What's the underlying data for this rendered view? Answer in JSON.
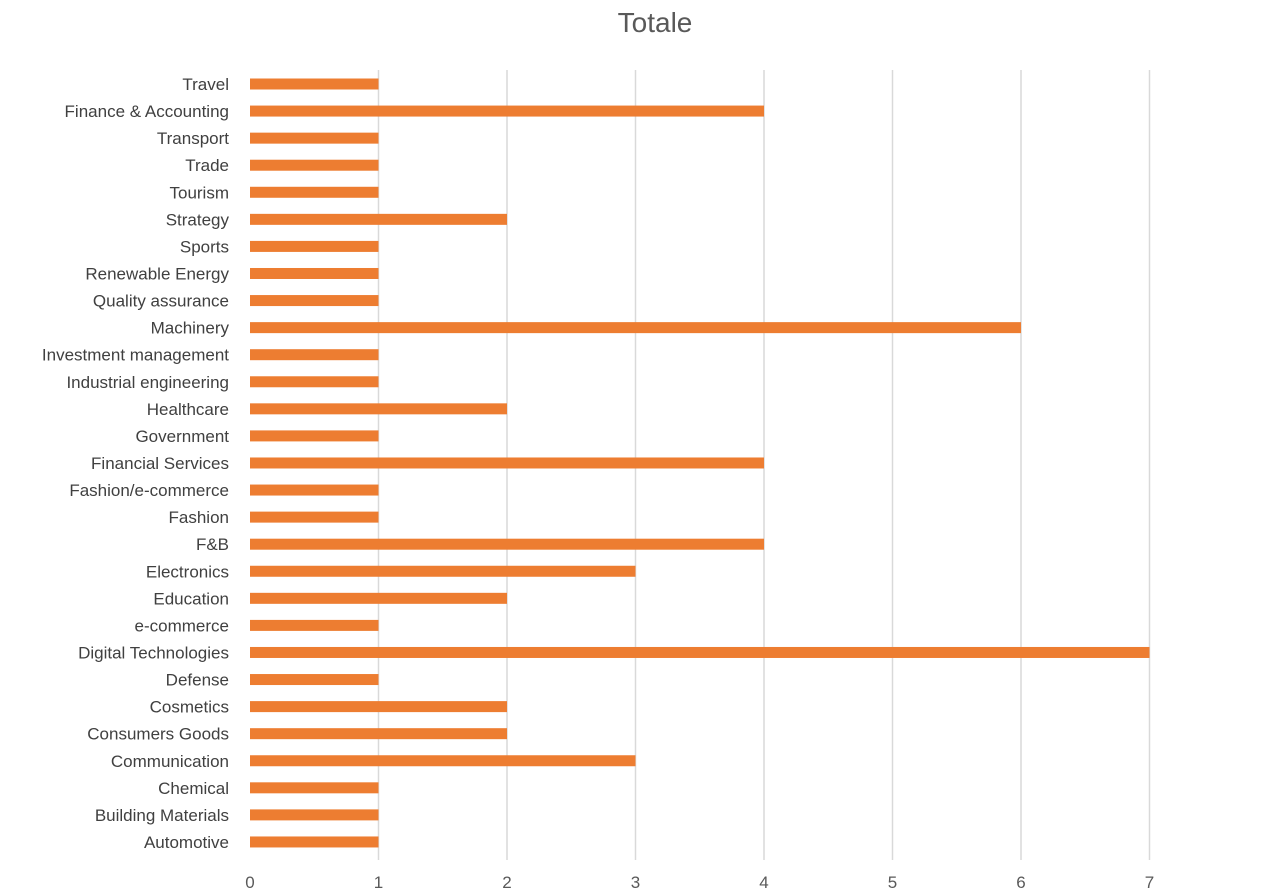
{
  "chart_data": {
    "type": "bar",
    "orientation": "horizontal",
    "title": "Totale",
    "xlabel": "",
    "ylabel": "",
    "categories": [
      "Travel",
      "Finance & Accounting",
      "Transport",
      "Trade",
      "Tourism",
      "Strategy",
      "Sports",
      "Renewable Energy",
      "Quality assurance",
      "Machinery",
      "Investment management",
      "Industrial engineering",
      "Healthcare",
      "Government",
      "Financial Services",
      "Fashion/e-commerce",
      "Fashion",
      "F&B",
      "Electronics",
      "Education",
      "e-commerce",
      "Digital Technologies",
      "Defense",
      "Cosmetics",
      "Consumers Goods",
      "Communication",
      "Chemical",
      "Building Materials",
      "Automotive"
    ],
    "values": [
      1,
      4,
      1,
      1,
      1,
      2,
      1,
      1,
      1,
      6,
      1,
      1,
      2,
      1,
      4,
      1,
      1,
      4,
      3,
      2,
      1,
      7,
      1,
      2,
      2,
      3,
      1,
      1,
      1
    ],
    "xlim": [
      0,
      8
    ],
    "xticks": [
      "0",
      "1",
      "2",
      "3",
      "4",
      "5",
      "6",
      "7"
    ],
    "grid": true,
    "legend": "none",
    "bar_color": "#ED7D31",
    "grid_color": "#D9D9D9"
  }
}
